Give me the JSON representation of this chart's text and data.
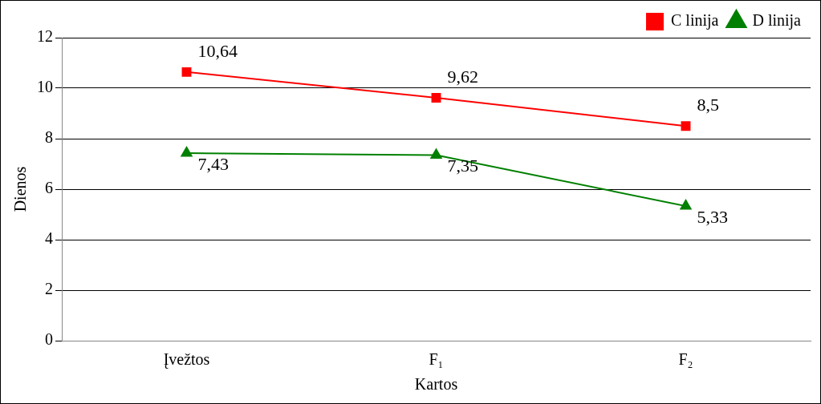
{
  "chart_data": {
    "type": "line",
    "xlabel": "Kartos",
    "ylabel": "Dienos",
    "categories": [
      "Įvežtos",
      "F₁",
      "F₂"
    ],
    "series": [
      {
        "name": "C linija",
        "color": "#ff0000",
        "marker": "square",
        "values": [
          10.64,
          9.62,
          8.5
        ],
        "value_labels": [
          "10,64",
          "9,62",
          "8,5"
        ]
      },
      {
        "name": "D linija",
        "color": "#008000",
        "marker": "triangle",
        "values": [
          7.43,
          7.35,
          5.33
        ],
        "value_labels": [
          "7,43",
          "7,35",
          "5,33"
        ]
      }
    ],
    "ylim": [
      0,
      12
    ],
    "yticks": [
      0,
      2,
      4,
      6,
      8,
      10,
      12
    ],
    "grid": "y",
    "legend": "top right"
  }
}
